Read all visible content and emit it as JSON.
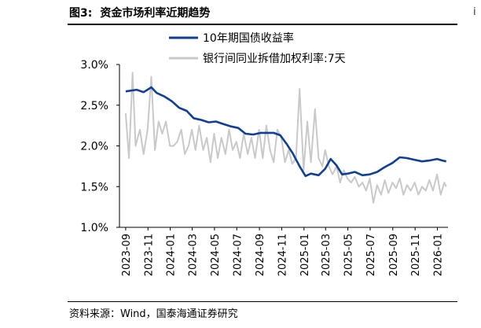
{
  "figure": {
    "label": "图3:",
    "title": "资金市场利率近期趋势",
    "source": "资料来源：Wind，国泰海通证券研究",
    "edge_text": "i"
  },
  "chart_data": {
    "type": "line",
    "title": "资金市场利率近期趋势",
    "xlabel": "",
    "ylabel": "",
    "ylim": [
      1.0,
      3.0
    ],
    "y_ticks": [
      "1.0%",
      "1.5%",
      "2.0%",
      "2.5%",
      "3.0%"
    ],
    "x_ticks": [
      "2023-09",
      "2023-11",
      "2024-01",
      "2024-03",
      "2024-05",
      "2024-07",
      "2024-09",
      "2024-11",
      "2025-01",
      "2025-03",
      "2025-05",
      "2025-07",
      "2025-09",
      "2025-11",
      "2026-01"
    ],
    "grid": false,
    "legend_position": "top",
    "series": [
      {
        "name": "10年期国债收益率",
        "color": "#0f3f96",
        "x": [
          "2023-09-01",
          "2023-10-01",
          "2023-10-20",
          "2023-11-10",
          "2023-11-25",
          "2023-12-15",
          "2024-01-05",
          "2024-01-25",
          "2024-02-15",
          "2024-03-05",
          "2024-03-25",
          "2024-04-15",
          "2024-05-05",
          "2024-05-25",
          "2024-06-15",
          "2024-07-05",
          "2024-07-25",
          "2024-08-15",
          "2024-09-05",
          "2024-09-25",
          "2024-10-10",
          "2024-10-28",
          "2024-11-15",
          "2024-12-01",
          "2024-12-20",
          "2025-01-05",
          "2025-01-20",
          "2025-02-10",
          "2025-02-28",
          "2025-03-15",
          "2025-03-31",
          "2025-04-15",
          "2025-05-01",
          "2025-05-20",
          "2025-06-10",
          "2025-06-30",
          "2025-07-20",
          "2025-08-10",
          "2025-08-31",
          "2025-09-20",
          "2025-10-10",
          "2025-10-30",
          "2025-11-20",
          "2025-12-10",
          "2025-12-31",
          "2026-01-15",
          "2026-01-25"
        ],
        "y": [
          2.67,
          2.69,
          2.66,
          2.72,
          2.65,
          2.61,
          2.55,
          2.47,
          2.43,
          2.34,
          2.32,
          2.29,
          2.3,
          2.27,
          2.24,
          2.22,
          2.15,
          2.14,
          2.16,
          2.16,
          2.16,
          2.13,
          2.02,
          1.91,
          1.75,
          1.63,
          1.66,
          1.64,
          1.72,
          1.84,
          1.76,
          1.65,
          1.66,
          1.68,
          1.64,
          1.65,
          1.68,
          1.74,
          1.79,
          1.86,
          1.85,
          1.83,
          1.81,
          1.82,
          1.84,
          1.82,
          1.81
        ]
      },
      {
        "name": "银行间同业拆借加权利率:7天",
        "color": "#c9c9c9",
        "x": [
          "2023-09-01",
          "2023-09-10",
          "2023-09-20",
          "2023-09-28",
          "2023-10-10",
          "2023-10-20",
          "2023-10-31",
          "2023-11-10",
          "2023-11-20",
          "2023-11-30",
          "2023-12-10",
          "2023-12-20",
          "2023-12-31",
          "2024-01-10",
          "2024-01-20",
          "2024-01-31",
          "2024-02-10",
          "2024-02-20",
          "2024-02-29",
          "2024-03-10",
          "2024-03-20",
          "2024-03-31",
          "2024-04-10",
          "2024-04-20",
          "2024-04-30",
          "2024-05-10",
          "2024-05-20",
          "2024-05-31",
          "2024-06-10",
          "2024-06-20",
          "2024-06-30",
          "2024-07-10",
          "2024-07-20",
          "2024-07-31",
          "2024-08-10",
          "2024-08-20",
          "2024-08-31",
          "2024-09-10",
          "2024-09-20",
          "2024-09-30",
          "2024-10-10",
          "2024-10-20",
          "2024-10-31",
          "2024-11-10",
          "2024-11-20",
          "2024-11-30",
          "2024-12-10",
          "2024-12-20",
          "2024-12-31",
          "2025-01-10",
          "2025-01-20",
          "2025-01-31",
          "2025-02-10",
          "2025-02-20",
          "2025-02-28",
          "2025-03-10",
          "2025-03-20",
          "2025-03-31",
          "2025-04-10",
          "2025-04-20",
          "2025-04-30",
          "2025-05-10",
          "2025-05-20",
          "2025-05-31",
          "2025-06-10",
          "2025-06-20",
          "2025-06-30",
          "2025-07-10",
          "2025-07-20",
          "2025-07-31",
          "2025-08-10",
          "2025-08-20",
          "2025-08-31",
          "2025-09-10",
          "2025-09-20",
          "2025-09-30",
          "2025-10-10",
          "2025-10-20",
          "2025-10-31",
          "2025-11-10",
          "2025-11-20",
          "2025-11-30",
          "2025-12-10",
          "2025-12-20",
          "2025-12-31",
          "2026-01-10",
          "2026-01-20",
          "2026-01-25"
        ],
        "y": [
          2.4,
          1.85,
          2.9,
          2.0,
          2.2,
          1.9,
          2.2,
          2.85,
          1.95,
          2.3,
          2.15,
          2.3,
          2.0,
          2.0,
          2.05,
          2.2,
          1.9,
          2.0,
          2.2,
          1.95,
          2.25,
          1.95,
          2.1,
          1.8,
          2.15,
          1.85,
          2.1,
          1.9,
          2.2,
          1.95,
          2.05,
          1.85,
          2.15,
          1.9,
          2.1,
          1.85,
          2.2,
          1.85,
          2.25,
          1.95,
          1.8,
          2.2,
          2.1,
          1.8,
          1.95,
          1.78,
          1.85,
          2.7,
          1.7,
          2.3,
          1.8,
          2.45,
          1.85,
          1.75,
          1.95,
          1.75,
          1.65,
          1.75,
          1.55,
          1.7,
          1.6,
          1.55,
          1.62,
          1.5,
          1.55,
          1.45,
          1.6,
          1.3,
          1.52,
          1.4,
          1.58,
          1.42,
          1.55,
          1.48,
          1.6,
          1.4,
          1.52,
          1.45,
          1.55,
          1.4,
          1.5,
          1.45,
          1.58,
          1.45,
          1.65,
          1.4,
          1.55,
          1.5
        ]
      }
    ]
  }
}
